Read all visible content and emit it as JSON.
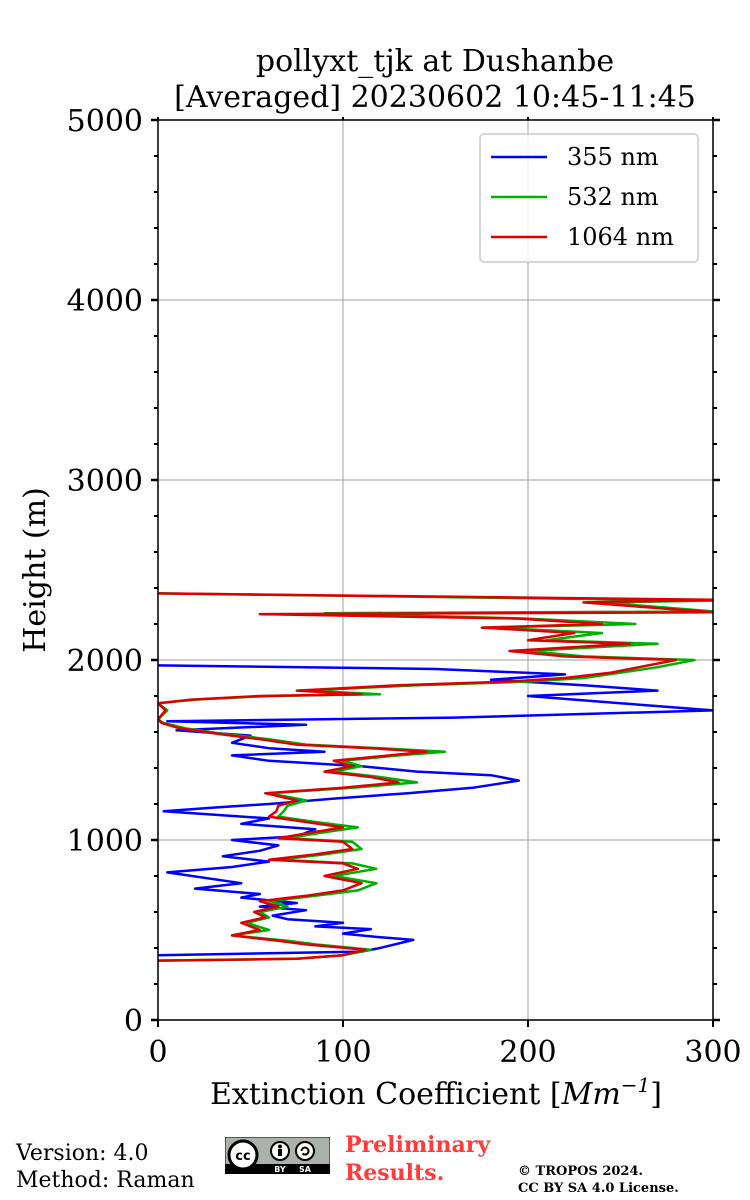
{
  "chart_data": {
    "type": "line",
    "title": "pollyxt_tjk at Dushanbe",
    "subtitle": "[Averaged] 20230602 10:45-11:45",
    "xlabel": "Extinction Coefficient [",
    "xlabel_unit": "Mm",
    "xlabel_exp": "−1",
    "xlabel_close": "]",
    "ylabel": "Height (m)",
    "xlim": [
      0,
      300
    ],
    "ylim": [
      0,
      5000
    ],
    "xticks": [
      0,
      100,
      200,
      300
    ],
    "yticks": [
      0,
      1000,
      2000,
      3000,
      4000,
      5000
    ],
    "grid": true,
    "legend_position": "top-right",
    "series": [
      {
        "name": "355 nm",
        "color": "#0000ff",
        "points": [
          [
            0,
            360
          ],
          [
            110,
            380
          ],
          [
            120,
            400
          ],
          [
            138,
            445
          ],
          [
            120,
            460
          ],
          [
            100,
            480
          ],
          [
            115,
            505
          ],
          [
            85,
            520
          ],
          [
            100,
            540
          ],
          [
            70,
            560
          ],
          [
            62,
            580
          ],
          [
            80,
            610
          ],
          [
            55,
            630
          ],
          [
            75,
            650
          ],
          [
            45,
            680
          ],
          [
            55,
            700
          ],
          [
            20,
            730
          ],
          [
            45,
            760
          ],
          [
            5,
            820
          ],
          [
            40,
            850
          ],
          [
            60,
            880
          ],
          [
            35,
            910
          ],
          [
            55,
            940
          ],
          [
            65,
            970
          ],
          [
            40,
            1000
          ],
          [
            75,
            1020
          ],
          [
            85,
            1060
          ],
          [
            45,
            1090
          ],
          [
            60,
            1120
          ],
          [
            3,
            1160
          ],
          [
            30,
            1180
          ],
          [
            60,
            1200
          ],
          [
            95,
            1230
          ],
          [
            135,
            1260
          ],
          [
            170,
            1290
          ],
          [
            195,
            1330
          ],
          [
            180,
            1360
          ],
          [
            140,
            1380
          ],
          [
            110,
            1410
          ],
          [
            60,
            1440
          ],
          [
            40,
            1470
          ],
          [
            90,
            1490
          ],
          [
            60,
            1510
          ],
          [
            40,
            1540
          ],
          [
            50,
            1580
          ],
          [
            10,
            1610
          ],
          [
            80,
            1640
          ],
          [
            5,
            1660
          ],
          [
            160,
            1680
          ],
          [
            300,
            1720
          ],
          [
            250,
            1760
          ],
          [
            200,
            1800
          ],
          [
            270,
            1830
          ],
          [
            230,
            1860
          ],
          [
            180,
            1890
          ],
          [
            220,
            1920
          ],
          [
            150,
            1950
          ],
          [
            0,
            1970
          ]
        ]
      },
      {
        "name": "532 nm",
        "color": "#00b000",
        "points": [
          [
            0,
            330
          ],
          [
            75,
            340
          ],
          [
            100,
            360
          ],
          [
            115,
            390
          ],
          [
            85,
            420
          ],
          [
            70,
            440
          ],
          [
            40,
            470
          ],
          [
            60,
            500
          ],
          [
            48,
            540
          ],
          [
            60,
            570
          ],
          [
            55,
            600
          ],
          [
            70,
            630
          ],
          [
            60,
            660
          ],
          [
            85,
            690
          ],
          [
            108,
            720
          ],
          [
            118,
            760
          ],
          [
            95,
            800
          ],
          [
            118,
            840
          ],
          [
            105,
            870
          ],
          [
            65,
            890
          ],
          [
            90,
            920
          ],
          [
            110,
            950
          ],
          [
            105,
            990
          ],
          [
            70,
            1010
          ],
          [
            88,
            1040
          ],
          [
            108,
            1070
          ],
          [
            85,
            1100
          ],
          [
            65,
            1130
          ],
          [
            68,
            1160
          ],
          [
            70,
            1190
          ],
          [
            80,
            1220
          ],
          [
            60,
            1260
          ],
          [
            105,
            1290
          ],
          [
            140,
            1320
          ],
          [
            120,
            1350
          ],
          [
            95,
            1380
          ],
          [
            110,
            1410
          ],
          [
            100,
            1440
          ],
          [
            130,
            1470
          ],
          [
            155,
            1490
          ],
          [
            120,
            1510
          ],
          [
            80,
            1530
          ],
          [
            60,
            1560
          ],
          [
            35,
            1590
          ],
          [
            15,
            1620
          ],
          [
            3,
            1650
          ],
          [
            0,
            1670
          ],
          [
            5,
            1720
          ],
          [
            0,
            1760
          ],
          [
            20,
            1780
          ],
          [
            60,
            1800
          ],
          [
            120,
            1810
          ],
          [
            80,
            1830
          ],
          [
            140,
            1860
          ],
          [
            200,
            1880
          ],
          [
            230,
            1900
          ],
          [
            250,
            1930
          ],
          [
            270,
            1960
          ],
          [
            290,
            2000
          ],
          [
            230,
            2020
          ],
          [
            200,
            2050
          ],
          [
            270,
            2090
          ],
          [
            210,
            2110
          ],
          [
            240,
            2150
          ],
          [
            180,
            2180
          ],
          [
            258,
            2200
          ],
          [
            200,
            2230
          ],
          [
            90,
            2260
          ],
          [
            300,
            2270
          ],
          [
            240,
            2320
          ],
          [
            300,
            2330
          ],
          [
            0,
            2370
          ]
        ]
      },
      {
        "name": "1064 nm",
        "color": "#dd0000",
        "points": [
          [
            0,
            330
          ],
          [
            75,
            340
          ],
          [
            100,
            360
          ],
          [
            112,
            390
          ],
          [
            80,
            420
          ],
          [
            65,
            440
          ],
          [
            40,
            470
          ],
          [
            55,
            500
          ],
          [
            45,
            540
          ],
          [
            58,
            570
          ],
          [
            52,
            600
          ],
          [
            65,
            630
          ],
          [
            55,
            660
          ],
          [
            80,
            690
          ],
          [
            100,
            720
          ],
          [
            110,
            760
          ],
          [
            90,
            800
          ],
          [
            108,
            840
          ],
          [
            100,
            870
          ],
          [
            60,
            890
          ],
          [
            85,
            920
          ],
          [
            105,
            950
          ],
          [
            100,
            990
          ],
          [
            65,
            1010
          ],
          [
            82,
            1040
          ],
          [
            100,
            1070
          ],
          [
            80,
            1100
          ],
          [
            60,
            1130
          ],
          [
            64,
            1160
          ],
          [
            65,
            1190
          ],
          [
            75,
            1220
          ],
          [
            58,
            1260
          ],
          [
            100,
            1290
          ],
          [
            130,
            1320
          ],
          [
            115,
            1350
          ],
          [
            90,
            1380
          ],
          [
            105,
            1410
          ],
          [
            95,
            1440
          ],
          [
            125,
            1470
          ],
          [
            145,
            1490
          ],
          [
            115,
            1510
          ],
          [
            75,
            1530
          ],
          [
            55,
            1560
          ],
          [
            32,
            1590
          ],
          [
            12,
            1620
          ],
          [
            2,
            1650
          ],
          [
            0,
            1670
          ],
          [
            4,
            1720
          ],
          [
            0,
            1760
          ],
          [
            18,
            1780
          ],
          [
            55,
            1800
          ],
          [
            110,
            1810
          ],
          [
            75,
            1830
          ],
          [
            130,
            1860
          ],
          [
            190,
            1880
          ],
          [
            220,
            1900
          ],
          [
            245,
            1930
          ],
          [
            260,
            1960
          ],
          [
            280,
            2000
          ],
          [
            220,
            2020
          ],
          [
            190,
            2050
          ],
          [
            255,
            2090
          ],
          [
            200,
            2110
          ],
          [
            225,
            2150
          ],
          [
            175,
            2180
          ],
          [
            240,
            2200
          ],
          [
            195,
            2230
          ],
          [
            55,
            2255
          ],
          [
            300,
            2265
          ],
          [
            230,
            2320
          ],
          [
            300,
            2335
          ],
          [
            0,
            2370
          ]
        ]
      }
    ]
  },
  "footer": {
    "version": "Version: 4.0",
    "method": "Method: Raman",
    "preliminary_line1": "Preliminary",
    "preliminary_line2": "Results.",
    "copyright_line1": "© TROPOS 2024.",
    "copyright_line2": "CC BY SA 4.0 License.",
    "cc_badge": {
      "cc": "cc",
      "by": "BY",
      "sa": "SA"
    }
  }
}
